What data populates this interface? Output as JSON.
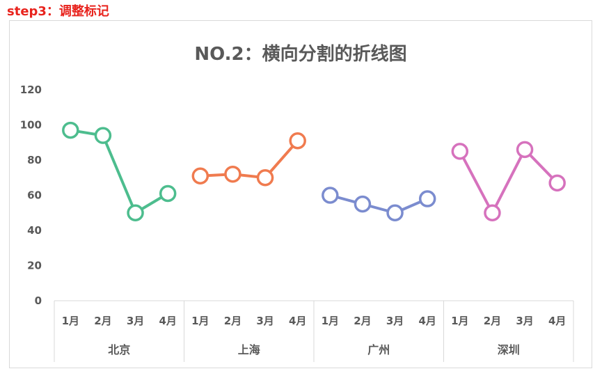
{
  "header": {
    "step_title": "step3：调整标记"
  },
  "chart_data": {
    "type": "line",
    "title": "NO.2：横向分割的折线图",
    "xlabel": "",
    "ylabel": "",
    "ylim": [
      0,
      120
    ],
    "yticks": [
      0,
      20,
      40,
      60,
      80,
      100,
      120
    ],
    "grid": false,
    "legend": "none",
    "categories": [
      "1月",
      "2月",
      "3月",
      "4月"
    ],
    "series": [
      {
        "name": "北京",
        "color": "#4dbd8e",
        "values": [
          97,
          94,
          50,
          61
        ]
      },
      {
        "name": "上海",
        "color": "#f07b4f",
        "values": [
          71,
          72,
          70,
          91
        ]
      },
      {
        "name": "广州",
        "color": "#7b8ccf",
        "values": [
          60,
          55,
          50,
          58
        ]
      },
      {
        "name": "深圳",
        "color": "#d672bd",
        "values": [
          85,
          50,
          86,
          67
        ]
      }
    ]
  }
}
